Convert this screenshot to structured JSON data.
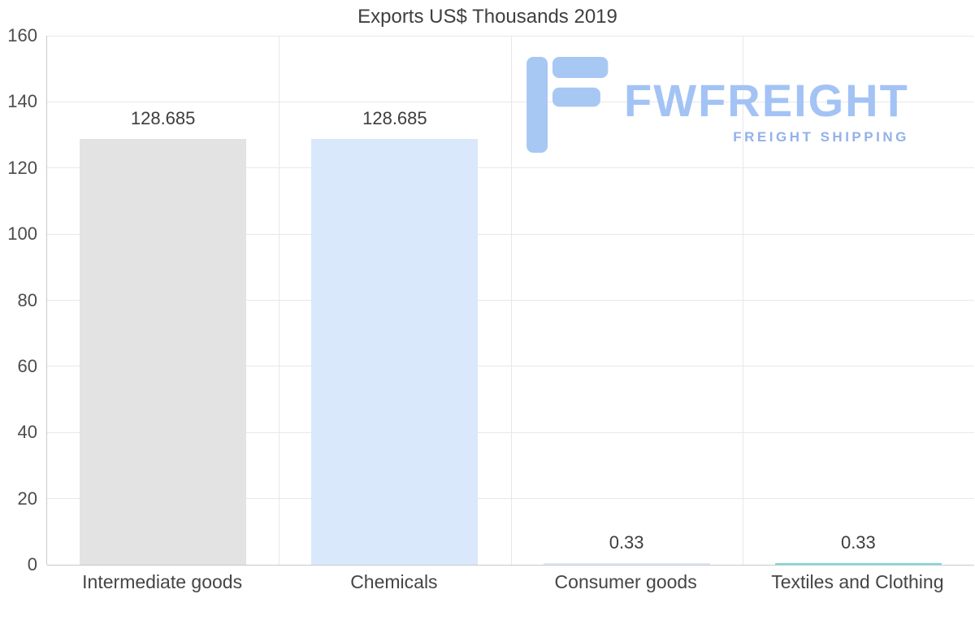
{
  "chart_data": {
    "type": "bar",
    "title": "Exports US$ Thousands 2019",
    "categories": [
      "Intermediate goods",
      "Chemicals",
      "Consumer goods",
      "Textiles and Clothing"
    ],
    "values": [
      128.685,
      128.685,
      0.33,
      0.33
    ],
    "value_labels": [
      "128.685",
      "128.685",
      "0.33",
      "0.33"
    ],
    "bar_colors": [
      "#e3e3e3",
      "#d9e8fa",
      "#d9e8fa",
      "#7bd8db"
    ],
    "xlabel": "",
    "ylabel": "",
    "ylim": [
      0,
      160
    ],
    "yticks": [
      0,
      20,
      40,
      60,
      80,
      100,
      120,
      140,
      160
    ],
    "grid": true,
    "legend": false,
    "colors": {
      "grid": "#e8e8e8",
      "axis": "#c9c9c9",
      "title_text": "#3f3f3f",
      "tick_text": "#4c4c4c"
    }
  },
  "watermark": {
    "brand": "FWFREIGHT",
    "tagline": "FREIGHT SHIPPING",
    "brand_color": "#a3c3f5",
    "tagline_color": "#93b1ea",
    "icon_color": "#a8c8f4"
  }
}
